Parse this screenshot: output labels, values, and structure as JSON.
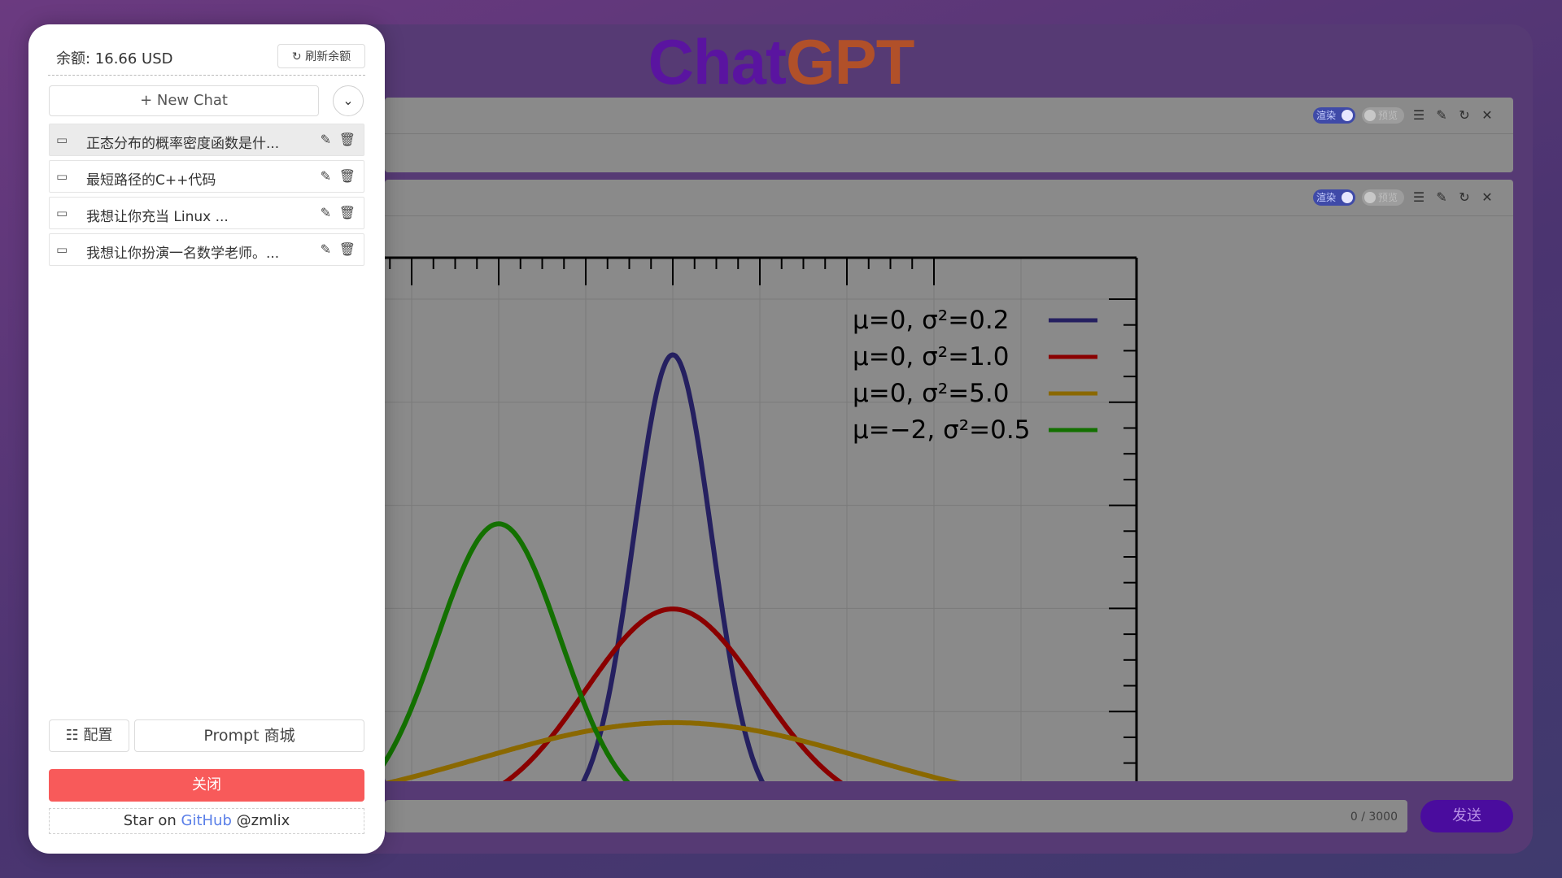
{
  "brand": {
    "part1": "Chat",
    "part2": "GPT"
  },
  "sidebar": {
    "balance": "余额: 16.66 USD",
    "refresh_label": "刷新余额",
    "new_chat_label": "New Chat",
    "chats": [
      {
        "title": "正态分布的概率密度函数是什..."
      },
      {
        "title": "最短路径的C++代码"
      },
      {
        "title": "我想让你充当 Linux ..."
      },
      {
        "title": "我想让你扮演一名数学老师。..."
      }
    ],
    "config_label": "配置",
    "prompt_label": "Prompt 商城",
    "close_label": "关闭",
    "star": {
      "prefix": "Star on",
      "link": "GitHub",
      "handle": "@zmlix"
    }
  },
  "cards": [
    {
      "toggle_render": "渲染",
      "toggle_preview": "预览"
    },
    {
      "toggle_render": "渲染",
      "toggle_preview": "预览"
    }
  ],
  "input": {
    "counter": "0 / 3000",
    "send_label": "发送"
  },
  "colors": {
    "series_1": "#252060",
    "series_2": "#8a0000",
    "series_3": "#8a6800",
    "series_4": "#137000",
    "send": "#4a0c9e",
    "close": "#f85a5a"
  },
  "chart_data": {
    "type": "line",
    "title": "",
    "xlabel": "",
    "ylabel": "",
    "xlim": [
      -5,
      5
    ],
    "ylim": [
      0,
      1
    ],
    "grid": true,
    "legend_position": "top-right",
    "series": [
      {
        "name": "μ=0, σ²=0.2",
        "mu": 0,
        "var": 0.2,
        "color": "#252060"
      },
      {
        "name": "μ=0, σ²=1.0",
        "mu": 0,
        "var": 1.0,
        "color": "#8a0000"
      },
      {
        "name": "μ=0, σ²=5.0",
        "mu": 0,
        "var": 5.0,
        "color": "#8a6800"
      },
      {
        "name": "μ=−2, σ²=0.5",
        "mu": -2,
        "var": 0.5,
        "color": "#137000"
      }
    ]
  }
}
